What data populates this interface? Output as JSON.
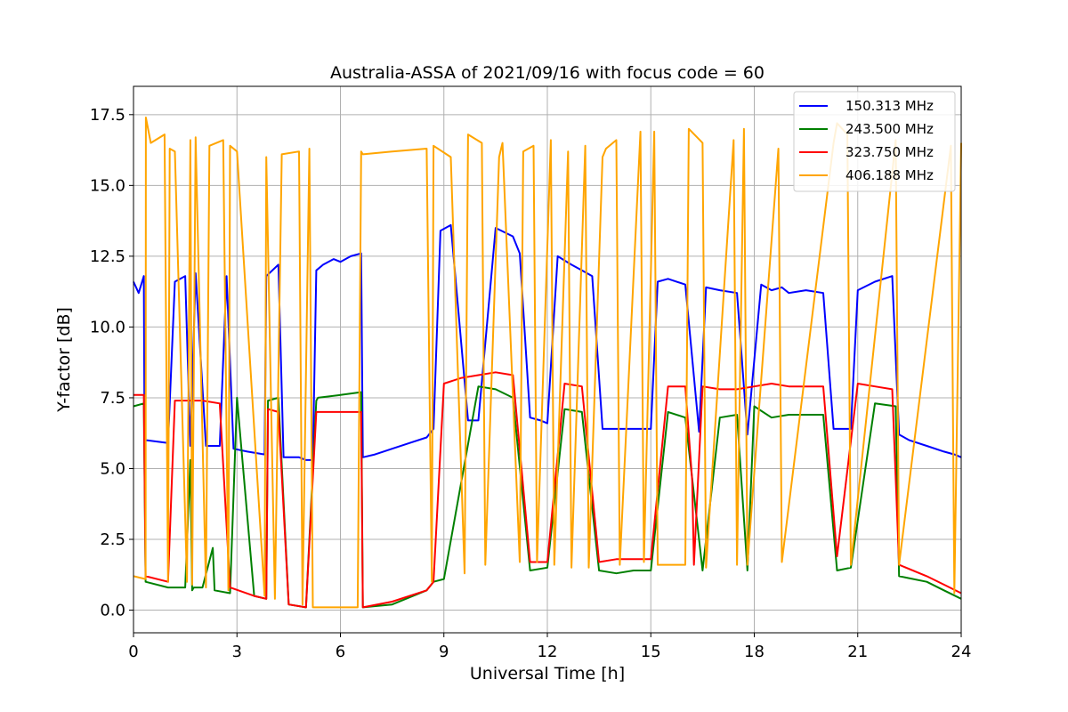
{
  "chart_data": {
    "type": "line",
    "title": "Australia-ASSA of 2021/09/16 with focus code = 60",
    "xlabel": "Universal Time [h]",
    "ylabel": "Y-factor [dB]",
    "xlim": [
      0,
      24
    ],
    "ylim": [
      -0.8,
      18.5
    ],
    "xticks": [
      0,
      3,
      6,
      9,
      12,
      15,
      18,
      21,
      24
    ],
    "xtick_labels": [
      "0",
      "3",
      "6",
      "9",
      "12",
      "15",
      "18",
      "21",
      "24"
    ],
    "yticks": [
      0,
      2.5,
      5,
      7.5,
      10,
      12.5,
      15,
      17.5
    ],
    "ytick_labels": [
      "0.0",
      "2.5",
      "5.0",
      "7.5",
      "10.0",
      "12.5",
      "15.0",
      "17.5"
    ],
    "grid": true,
    "legend_position": "top-right",
    "series": [
      {
        "name": "150.313 MHz",
        "color": "#0000ff",
        "x": [
          0,
          0.15,
          0.3,
          0.32,
          0.4,
          1,
          1.2,
          1.5,
          1.65,
          1.8,
          2.1,
          2.5,
          2.7,
          2.9,
          3.3,
          3.8,
          3.85,
          4.2,
          4.35,
          4.5,
          4.8,
          5.0,
          5.2,
          5.3,
          5.5,
          5.8,
          6.0,
          6.3,
          6.6,
          6.65,
          7.0,
          7.5,
          8.0,
          8.5,
          8.7,
          8.9,
          9.2,
          9.7,
          10.0,
          10.5,
          11.0,
          11.2,
          11.5,
          11.8,
          12.0,
          12.3,
          12.7,
          13.0,
          13.3,
          13.6,
          14.0,
          14.5,
          15.0,
          15.2,
          15.5,
          16.0,
          16.4,
          16.6,
          17.0,
          17.5,
          17.8,
          18.2,
          18.5,
          18.8,
          19.0,
          19.5,
          20.0,
          20.3,
          20.8,
          21.0,
          21.5,
          22.0,
          22.2,
          22.5,
          23.0,
          23.5,
          23.8,
          24.0
        ],
        "y": [
          11.6,
          11.2,
          11.8,
          6.0,
          6.0,
          5.9,
          11.6,
          11.8,
          5.8,
          11.9,
          5.8,
          5.8,
          11.8,
          5.7,
          5.6,
          5.5,
          11.8,
          12.2,
          5.4,
          5.4,
          5.4,
          5.3,
          5.3,
          12.0,
          12.2,
          12.4,
          12.3,
          12.5,
          12.6,
          5.4,
          5.5,
          5.7,
          5.9,
          6.1,
          6.4,
          13.4,
          13.6,
          6.7,
          6.7,
          13.5,
          13.2,
          12.6,
          6.8,
          6.7,
          6.6,
          12.5,
          12.2,
          12.0,
          11.8,
          6.4,
          6.4,
          6.4,
          6.4,
          11.6,
          11.7,
          11.5,
          6.3,
          11.4,
          11.3,
          11.2,
          6.2,
          11.5,
          11.3,
          11.4,
          11.2,
          11.3,
          11.2,
          6.4,
          6.4,
          11.3,
          11.6,
          11.8,
          6.2,
          6.0,
          5.8,
          5.6,
          5.5,
          5.4
        ]
      },
      {
        "name": "243.500 MHz",
        "color": "#008000",
        "x": [
          0,
          0.3,
          0.35,
          1.0,
          1.5,
          1.65,
          1.7,
          1.75,
          2.0,
          2.3,
          2.35,
          2.8,
          3.0,
          3.5,
          3.85,
          3.9,
          4.2,
          4.5,
          5.0,
          5.3,
          5.35,
          6.0,
          6.6,
          6.65,
          7.5,
          8.5,
          8.7,
          9.0,
          10.0,
          10.5,
          11.0,
          11.5,
          12.0,
          12.5,
          13.0,
          13.5,
          14.0,
          14.5,
          15.0,
          15.5,
          16.0,
          16.5,
          17.0,
          17.5,
          17.8,
          18.0,
          18.5,
          19.0,
          20.0,
          20.4,
          20.8,
          21.5,
          22.1,
          22.2,
          23.0,
          23.5,
          24.0
        ],
        "y": [
          7.2,
          7.3,
          1.0,
          0.8,
          0.8,
          5.3,
          0.7,
          0.8,
          0.8,
          2.2,
          0.7,
          0.6,
          7.5,
          0.5,
          0.4,
          7.4,
          7.5,
          0.2,
          0.1,
          7.4,
          7.5,
          7.6,
          7.7,
          0.1,
          0.2,
          0.7,
          1.0,
          1.1,
          7.9,
          7.8,
          7.5,
          1.4,
          1.5,
          7.1,
          7.0,
          1.4,
          1.3,
          1.4,
          1.4,
          7.0,
          6.8,
          1.4,
          6.8,
          6.9,
          1.4,
          7.2,
          6.8,
          6.9,
          6.9,
          1.4,
          1.5,
          7.3,
          7.2,
          1.2,
          1.0,
          0.7,
          0.4
        ]
      },
      {
        "name": "323.750 MHz",
        "color": "#ff0000",
        "x": [
          0,
          0.3,
          0.35,
          1.0,
          1.2,
          1.5,
          2.0,
          2.5,
          2.8,
          3.5,
          3.85,
          3.9,
          4.2,
          4.5,
          5.0,
          5.3,
          6.0,
          6.6,
          6.65,
          7.5,
          8.5,
          8.7,
          9.0,
          9.5,
          10.0,
          10.5,
          11.0,
          11.5,
          12.0,
          12.5,
          13.0,
          13.5,
          14.0,
          14.5,
          15.0,
          15.5,
          16.0,
          16.2,
          16.25,
          16.5,
          17.0,
          17.5,
          18.0,
          18.5,
          19.0,
          20.0,
          20.4,
          21.0,
          21.5,
          22.0,
          22.2,
          23.0,
          23.5,
          24.0
        ],
        "y": [
          7.6,
          7.6,
          1.2,
          1.0,
          7.4,
          7.4,
          7.4,
          7.3,
          0.8,
          0.5,
          0.4,
          7.1,
          7.0,
          0.2,
          0.1,
          7.0,
          7.0,
          7.0,
          0.1,
          0.3,
          0.7,
          1.0,
          8.0,
          8.2,
          8.3,
          8.4,
          8.3,
          1.7,
          1.7,
          8.0,
          7.9,
          1.7,
          1.8,
          1.8,
          1.8,
          7.9,
          7.9,
          4.6,
          1.6,
          7.9,
          7.8,
          7.8,
          7.9,
          8.0,
          7.9,
          7.9,
          1.9,
          8.0,
          7.9,
          7.8,
          1.6,
          1.2,
          0.9,
          0.6
        ]
      },
      {
        "name": "406.188 MHz",
        "color": "#ffa500",
        "x": [
          0,
          0.35,
          0.36,
          0.5,
          0.9,
          1.0,
          1.05,
          1.2,
          1.55,
          1.65,
          1.7,
          1.8,
          2.1,
          2.2,
          2.6,
          2.75,
          2.8,
          3.0,
          3.8,
          3.85,
          4.1,
          4.3,
          4.8,
          4.9,
          5.1,
          5.2,
          6.5,
          6.6,
          6.65,
          7.5,
          8.5,
          8.65,
          8.7,
          9.2,
          9.6,
          9.7,
          10.1,
          10.2,
          10.6,
          10.7,
          11.2,
          11.3,
          11.6,
          11.7,
          12.1,
          12.2,
          12.6,
          12.7,
          13.1,
          13.2,
          13.6,
          13.7,
          14.0,
          14.1,
          14.7,
          14.8,
          15.1,
          15.2,
          16.0,
          16.1,
          16.5,
          16.6,
          17.4,
          17.5,
          17.7,
          17.8,
          18.7,
          18.8,
          20.3,
          20.4,
          20.7,
          20.8,
          22.1,
          22.2,
          23.7,
          23.8,
          24.0
        ],
        "y": [
          1.2,
          1.1,
          17.4,
          16.5,
          16.8,
          1.0,
          16.3,
          16.2,
          1.0,
          16.6,
          0.9,
          16.7,
          0.8,
          16.4,
          16.6,
          0.7,
          16.4,
          16.2,
          0.5,
          16.0,
          0.4,
          16.1,
          16.2,
          0.2,
          16.3,
          0.1,
          0.1,
          16.2,
          16.1,
          16.2,
          16.3,
          1.0,
          16.4,
          16.0,
          1.3,
          16.8,
          16.5,
          1.6,
          16.0,
          16.5,
          1.7,
          16.2,
          16.4,
          1.7,
          16.6,
          1.6,
          16.2,
          1.5,
          16.4,
          1.5,
          16.0,
          16.3,
          16.6,
          1.6,
          16.9,
          1.7,
          16.9,
          1.6,
          1.6,
          17.0,
          16.5,
          1.5,
          16.6,
          1.6,
          17.0,
          1.6,
          16.3,
          1.7,
          16.5,
          17.2,
          16.8,
          1.6,
          16.6,
          1.6,
          16.4,
          0.6,
          16.5
        ]
      }
    ]
  }
}
